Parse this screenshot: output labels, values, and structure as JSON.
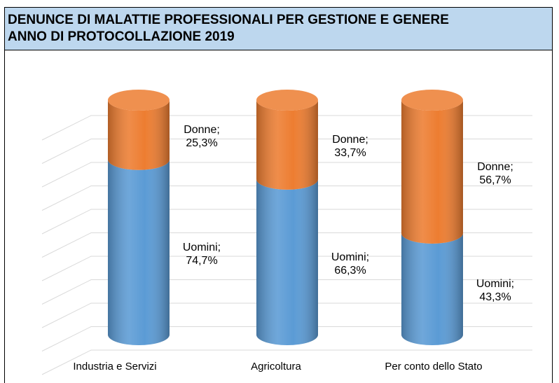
{
  "chart_data": {
    "type": "stacked-cylinder",
    "title": "DENUNCE DI MALATTIE PROFESSIONALI PER GESTIONE E GENERE",
    "subtitle": "ANNO DI PROTOCOLLAZIONE 2019",
    "categories": [
      "Industria e Servizi",
      "Agricoltura",
      "Per conto dello Stato"
    ],
    "series": [
      {
        "name": "Uomini",
        "color": "#5b9bd5",
        "values": [
          74.7,
          66.3,
          43.3
        ],
        "value_labels": [
          "Uomini; 74,7%",
          "Uomini; 66,3%",
          "Uomini; 43,3%"
        ]
      },
      {
        "name": "Donne",
        "color": "#ed7d31",
        "values": [
          25.3,
          33.7,
          56.7
        ],
        "value_labels": [
          "Donne; 25,3%",
          "Donne; 33,7%",
          "Donne; 56,7%"
        ]
      }
    ],
    "ylim": [
      0,
      100
    ],
    "yticks": [
      0,
      10,
      20,
      30,
      40,
      50,
      60,
      70,
      80,
      90,
      100
    ],
    "grid": true
  }
}
